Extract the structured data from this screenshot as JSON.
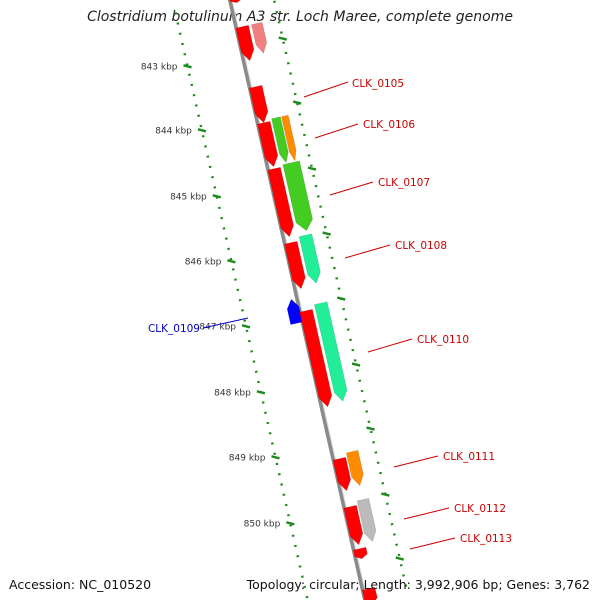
{
  "title": "Clostridium botulinum A3 str. Loch Maree, complete genome",
  "footer": {
    "accession": "Accession: NC_010520",
    "summary": "Topology: circular; Length: 3,992,906 bp; Genes: 3,762"
  },
  "colors": {
    "backbone": "#8a8a8a",
    "scale": "#1f8a1f",
    "forward_label": "#cc0000",
    "reverse_label": "#0000cc",
    "gene_red": "#ff0000",
    "gene_pink": "#f08080",
    "gene_orange": "#ff8c00",
    "gene_green": "#44cc22",
    "gene_mint": "#22ee99",
    "gene_gray": "#bbbbbb",
    "gene_blue": "#0000ff"
  },
  "scale_ticks": [
    "843 kbp",
    "844 kbp",
    "845 kbp",
    "846 kbp",
    "847 kbp",
    "848 kbp",
    "849 kbp",
    "850 kbp"
  ],
  "gene_labels": [
    {
      "text": "CLK_0105",
      "strand": "forward"
    },
    {
      "text": "CLK_0106",
      "strand": "forward"
    },
    {
      "text": "CLK_0107",
      "strand": "forward"
    },
    {
      "text": "CLK_0108",
      "strand": "forward"
    },
    {
      "text": "CLK_0109",
      "strand": "reverse"
    },
    {
      "text": "CLK_0110",
      "strand": "forward"
    },
    {
      "text": "CLK_0111",
      "strand": "forward"
    },
    {
      "text": "CLK_0112",
      "strand": "forward"
    },
    {
      "text": "CLK_0113",
      "strand": "forward"
    }
  ]
}
